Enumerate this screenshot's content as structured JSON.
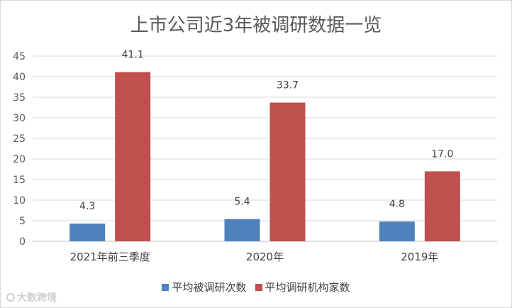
{
  "chart_data": {
    "type": "bar",
    "title": "上市公司近3年被调研数据一览",
    "categories": [
      "2021年前三季度",
      "2020年",
      "2019年"
    ],
    "series": [
      {
        "name": "平均被调研次数",
        "values": [
          4.3,
          5.4,
          4.8
        ],
        "labels": [
          "4.3",
          "5.4",
          "4.8"
        ],
        "color": "#4f81bd"
      },
      {
        "name": "平均调研机构家数",
        "values": [
          41.1,
          33.7,
          17.0
        ],
        "labels": [
          "41.1",
          "33.7",
          "17.0"
        ],
        "color": "#c0504d"
      }
    ],
    "ylim": [
      0,
      45
    ],
    "yticks": [
      0,
      5,
      10,
      15,
      20,
      25,
      30,
      35,
      40,
      45
    ],
    "grid": true,
    "legend": "bottom",
    "xlabel": "",
    "ylabel": ""
  },
  "watermark": {
    "text": "大数跨境",
    "icon": "camera-logo-icon"
  }
}
